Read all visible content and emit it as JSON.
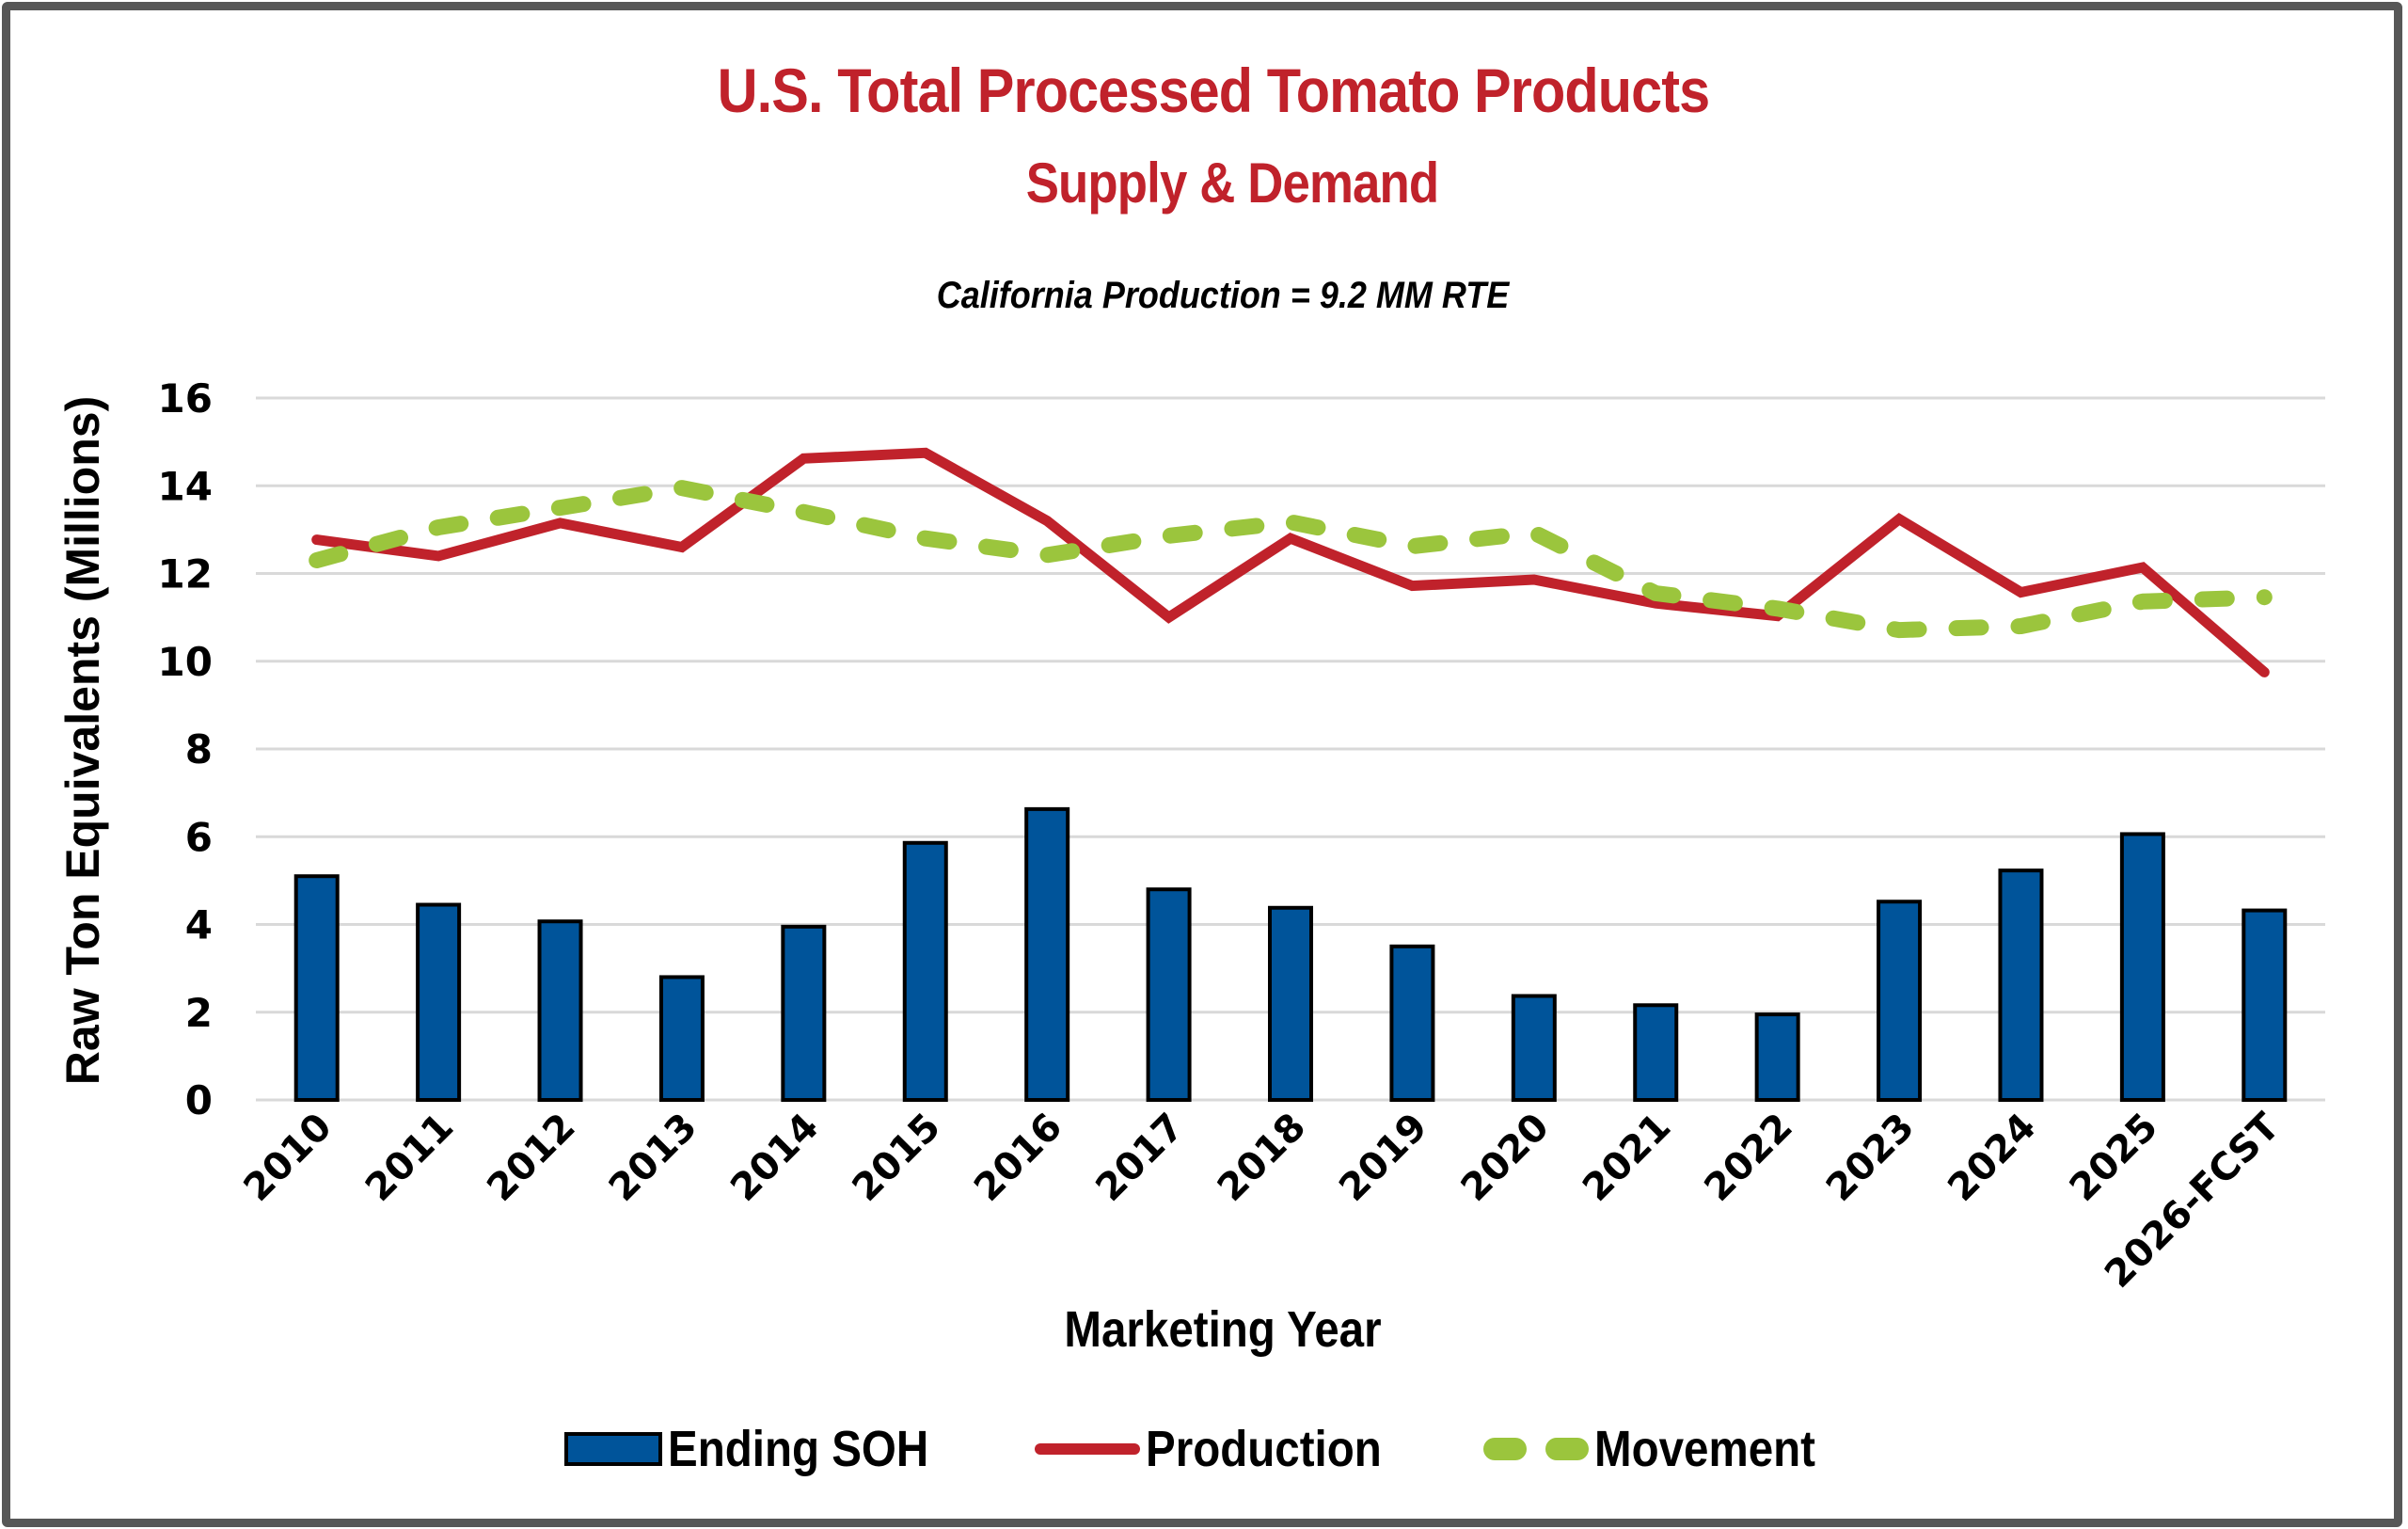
{
  "chart_data": {
    "type": "bar",
    "title": "U.S. Total Processed Tomato Products",
    "subtitle": "Supply & Demand",
    "annotation": "California Production = 9.2 MM RTE",
    "xlabel": "Marketing Year",
    "ylabel": "Raw Ton Equivalents (Millions)",
    "ylim": [
      0,
      16
    ],
    "yticks": [
      0,
      2,
      4,
      6,
      8,
      10,
      12,
      14,
      16
    ],
    "grid": true,
    "legend_position": "bottom",
    "categories": [
      "2010",
      "2011",
      "2012",
      "2013",
      "2014",
      "2015",
      "2016",
      "2017",
      "2018",
      "2019",
      "2020",
      "2021",
      "2022",
      "2023",
      "2024",
      "2025",
      "2026-FCST"
    ],
    "series": [
      {
        "name": "Ending SOH",
        "type": "bar",
        "color": "#00549A",
        "values": [
          5.1,
          4.45,
          4.07,
          2.8,
          3.95,
          5.86,
          6.63,
          4.8,
          4.38,
          3.5,
          2.37,
          2.16,
          1.95,
          4.52,
          5.23,
          6.06,
          4.32
        ]
      },
      {
        "name": "Production",
        "type": "line",
        "style": "solid",
        "color": "#C0222B",
        "values": [
          12.77,
          12.4,
          13.15,
          12.6,
          14.62,
          14.75,
          13.2,
          11.0,
          12.8,
          11.72,
          11.86,
          11.32,
          11.03,
          13.24,
          11.57,
          12.14,
          9.75
        ]
      },
      {
        "name": "Movement",
        "type": "line",
        "style": "dashed",
        "color": "#9BC53D",
        "values": [
          12.3,
          13.05,
          13.5,
          13.95,
          13.4,
          12.8,
          12.42,
          12.86,
          13.17,
          12.62,
          12.93,
          11.55,
          11.2,
          10.71,
          10.8,
          11.36,
          11.46
        ]
      }
    ]
  },
  "legend": [
    {
      "label": "Ending SOH",
      "symbol": "bar-swatch"
    },
    {
      "label": "Production",
      "symbol": "solid-line-swatch"
    },
    {
      "label": "Movement",
      "symbol": "dashed-line-swatch"
    }
  ],
  "colors": {
    "title": "#C0222B",
    "gridline": "#D9D9D9",
    "frame": "#575757"
  }
}
